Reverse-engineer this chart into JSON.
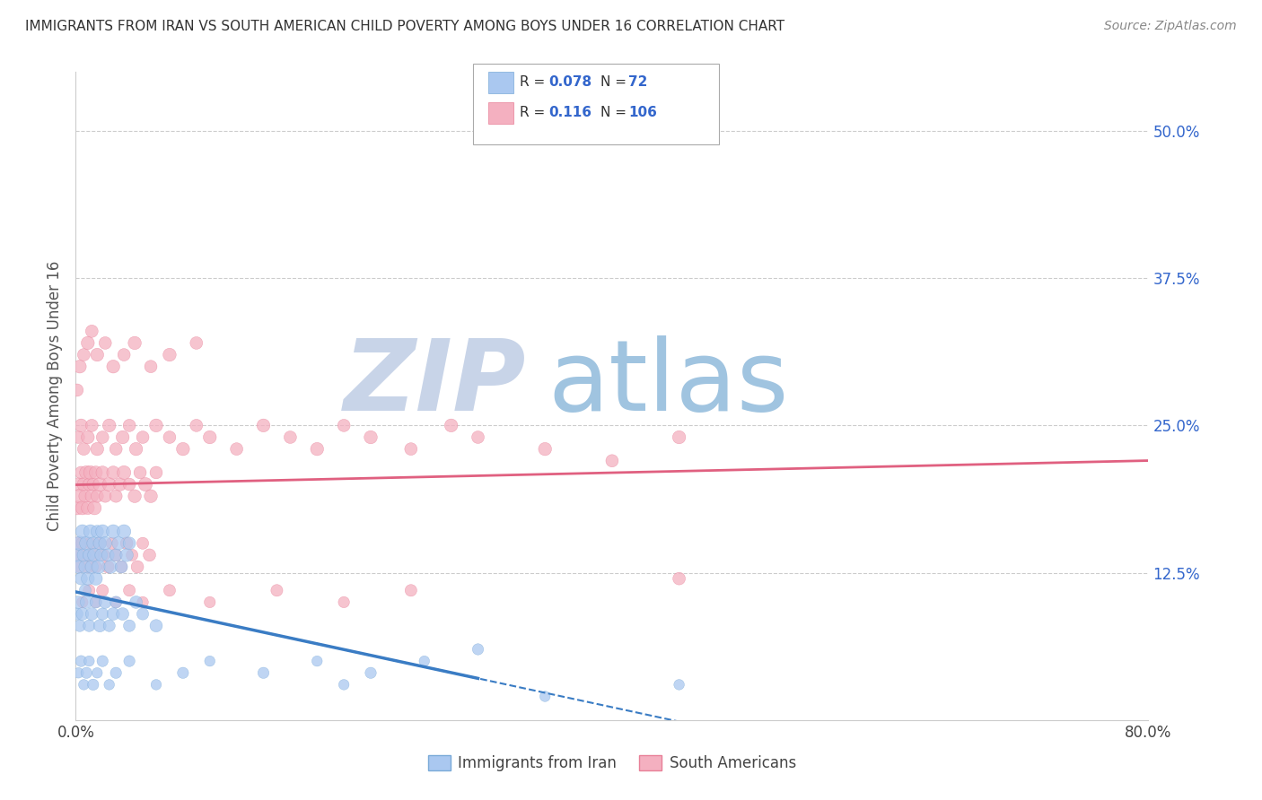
{
  "title": "IMMIGRANTS FROM IRAN VS SOUTH AMERICAN CHILD POVERTY AMONG BOYS UNDER 16 CORRELATION CHART",
  "source": "Source: ZipAtlas.com",
  "ylabel": "Child Poverty Among Boys Under 16",
  "xlim": [
    0.0,
    0.8
  ],
  "ylim": [
    0.0,
    0.55
  ],
  "ytick_labels": [
    "12.5%",
    "25.0%",
    "37.5%",
    "50.0%"
  ],
  "ytick_positions": [
    0.125,
    0.25,
    0.375,
    0.5
  ],
  "series": [
    {
      "name": "Immigrants from Iran",
      "color": "#aac8f0",
      "edge_color": "#7aaad8",
      "trend_color": "#3a7cc4",
      "trend_style": "-",
      "R": 0.078,
      "N": 72,
      "x": [
        0.001,
        0.002,
        0.003,
        0.004,
        0.005,
        0.006,
        0.007,
        0.008,
        0.009,
        0.01,
        0.011,
        0.012,
        0.013,
        0.014,
        0.015,
        0.016,
        0.017,
        0.018,
        0.019,
        0.02,
        0.022,
        0.024,
        0.026,
        0.028,
        0.03,
        0.032,
        0.034,
        0.036,
        0.038,
        0.04,
        0.001,
        0.002,
        0.003,
        0.005,
        0.007,
        0.008,
        0.01,
        0.012,
        0.015,
        0.018,
        0.02,
        0.022,
        0.025,
        0.028,
        0.03,
        0.035,
        0.04,
        0.045,
        0.05,
        0.06,
        0.002,
        0.004,
        0.006,
        0.008,
        0.01,
        0.013,
        0.016,
        0.02,
        0.025,
        0.03,
        0.04,
        0.06,
        0.08,
        0.1,
        0.14,
        0.18,
        0.22,
        0.26,
        0.3,
        0.2,
        0.35,
        0.45
      ],
      "y": [
        0.14,
        0.13,
        0.15,
        0.12,
        0.16,
        0.14,
        0.13,
        0.15,
        0.12,
        0.14,
        0.16,
        0.13,
        0.15,
        0.14,
        0.12,
        0.16,
        0.13,
        0.15,
        0.14,
        0.16,
        0.15,
        0.14,
        0.13,
        0.16,
        0.14,
        0.15,
        0.13,
        0.16,
        0.14,
        0.15,
        0.09,
        0.1,
        0.08,
        0.09,
        0.11,
        0.1,
        0.08,
        0.09,
        0.1,
        0.08,
        0.09,
        0.1,
        0.08,
        0.09,
        0.1,
        0.09,
        0.08,
        0.1,
        0.09,
        0.08,
        0.04,
        0.05,
        0.03,
        0.04,
        0.05,
        0.03,
        0.04,
        0.05,
        0.03,
        0.04,
        0.05,
        0.03,
        0.04,
        0.05,
        0.04,
        0.05,
        0.04,
        0.05,
        0.06,
        0.03,
        0.02,
        0.03
      ],
      "sizes": [
        120,
        110,
        130,
        100,
        120,
        110,
        100,
        120,
        110,
        100,
        120,
        110,
        100,
        120,
        110,
        100,
        120,
        110,
        100,
        120,
        110,
        100,
        110,
        120,
        100,
        110,
        100,
        120,
        110,
        100,
        90,
        100,
        90,
        100,
        90,
        100,
        90,
        100,
        90,
        100,
        90,
        100,
        90,
        100,
        90,
        100,
        90,
        100,
        90,
        100,
        70,
        80,
        70,
        80,
        70,
        80,
        70,
        80,
        70,
        80,
        80,
        70,
        80,
        70,
        80,
        70,
        80,
        70,
        80,
        70,
        70,
        70
      ]
    },
    {
      "name": "South Americans",
      "color": "#f4b0c0",
      "edge_color": "#e88098",
      "trend_color": "#e06080",
      "trend_style": "-",
      "R": 0.116,
      "N": 106,
      "x": [
        0.001,
        0.002,
        0.003,
        0.004,
        0.005,
        0.006,
        0.007,
        0.008,
        0.009,
        0.01,
        0.011,
        0.012,
        0.013,
        0.014,
        0.015,
        0.016,
        0.018,
        0.02,
        0.022,
        0.025,
        0.028,
        0.03,
        0.033,
        0.036,
        0.04,
        0.044,
        0.048,
        0.052,
        0.056,
        0.06,
        0.001,
        0.002,
        0.003,
        0.005,
        0.007,
        0.009,
        0.011,
        0.013,
        0.015,
        0.018,
        0.021,
        0.024,
        0.027,
        0.03,
        0.034,
        0.038,
        0.042,
        0.046,
        0.05,
        0.055,
        0.002,
        0.004,
        0.006,
        0.009,
        0.012,
        0.016,
        0.02,
        0.025,
        0.03,
        0.035,
        0.04,
        0.045,
        0.05,
        0.06,
        0.07,
        0.08,
        0.09,
        0.1,
        0.12,
        0.14,
        0.16,
        0.18,
        0.2,
        0.22,
        0.25,
        0.28,
        0.3,
        0.35,
        0.4,
        0.45,
        0.005,
        0.01,
        0.015,
        0.02,
        0.03,
        0.04,
        0.05,
        0.07,
        0.1,
        0.15,
        0.2,
        0.25,
        0.001,
        0.003,
        0.006,
        0.009,
        0.012,
        0.016,
        0.022,
        0.028,
        0.036,
        0.044,
        0.056,
        0.07,
        0.09,
        0.45
      ],
      "y": [
        0.18,
        0.2,
        0.19,
        0.21,
        0.18,
        0.2,
        0.19,
        0.21,
        0.18,
        0.2,
        0.21,
        0.19,
        0.2,
        0.18,
        0.21,
        0.19,
        0.2,
        0.21,
        0.19,
        0.2,
        0.21,
        0.19,
        0.2,
        0.21,
        0.2,
        0.19,
        0.21,
        0.2,
        0.19,
        0.21,
        0.14,
        0.15,
        0.13,
        0.15,
        0.14,
        0.13,
        0.15,
        0.14,
        0.13,
        0.15,
        0.14,
        0.13,
        0.15,
        0.14,
        0.13,
        0.15,
        0.14,
        0.13,
        0.15,
        0.14,
        0.24,
        0.25,
        0.23,
        0.24,
        0.25,
        0.23,
        0.24,
        0.25,
        0.23,
        0.24,
        0.25,
        0.23,
        0.24,
        0.25,
        0.24,
        0.23,
        0.25,
        0.24,
        0.23,
        0.25,
        0.24,
        0.23,
        0.25,
        0.24,
        0.23,
        0.25,
        0.24,
        0.23,
        0.22,
        0.24,
        0.1,
        0.11,
        0.1,
        0.11,
        0.1,
        0.11,
        0.1,
        0.11,
        0.1,
        0.11,
        0.1,
        0.11,
        0.28,
        0.3,
        0.31,
        0.32,
        0.33,
        0.31,
        0.32,
        0.3,
        0.31,
        0.32,
        0.3,
        0.31,
        0.32,
        0.12
      ],
      "sizes": [
        120,
        110,
        130,
        100,
        120,
        110,
        100,
        120,
        110,
        100,
        120,
        110,
        100,
        120,
        110,
        100,
        120,
        110,
        100,
        120,
        110,
        100,
        110,
        120,
        100,
        110,
        100,
        120,
        110,
        100,
        90,
        100,
        90,
        100,
        90,
        100,
        90,
        100,
        90,
        100,
        90,
        100,
        90,
        100,
        90,
        100,
        90,
        100,
        90,
        100,
        100,
        110,
        100,
        110,
        100,
        110,
        100,
        110,
        100,
        110,
        100,
        110,
        100,
        110,
        100,
        110,
        100,
        110,
        100,
        110,
        100,
        110,
        100,
        110,
        100,
        110,
        100,
        110,
        100,
        110,
        80,
        90,
        80,
        90,
        80,
        90,
        80,
        90,
        80,
        90,
        80,
        90,
        100,
        110,
        100,
        110,
        100,
        110,
        100,
        110,
        100,
        110,
        100,
        110,
        100,
        100
      ]
    }
  ],
  "watermark_zip_color": "#c8d4e8",
  "watermark_atlas_color": "#a0c4e0",
  "background_color": "#ffffff",
  "grid_color": "#cccccc",
  "tick_color": "#3366cc",
  "legend_color": "#3366cc",
  "title_fontsize": 11,
  "source_fontsize": 10,
  "tick_fontsize": 12,
  "ylabel_fontsize": 12
}
